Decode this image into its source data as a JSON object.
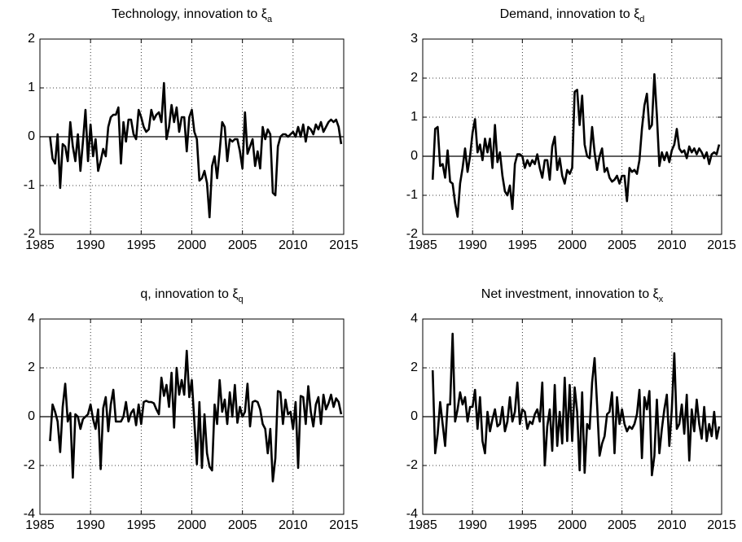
{
  "chart_data": [
    {
      "type": "line",
      "title": "Technology, innovation to ξ",
      "title_subscript": "a",
      "xlim": [
        1985,
        2015
      ],
      "xticks": [
        1985,
        1990,
        1995,
        2000,
        2005,
        2010,
        2015
      ],
      "ylim": [
        -2,
        2
      ],
      "yticks": [
        -2,
        -1,
        0,
        1,
        2
      ],
      "grid": true,
      "hline": 0,
      "x": [
        1986,
        1986.25,
        1986.5,
        1986.75,
        1987,
        1987.25,
        1987.5,
        1987.75,
        1988,
        1988.25,
        1988.5,
        1988.75,
        1989,
        1989.25,
        1989.5,
        1989.75,
        1990,
        1990.25,
        1990.5,
        1990.75,
        1991,
        1991.25,
        1991.5,
        1991.75,
        1992,
        1992.25,
        1992.5,
        1992.75,
        1993,
        1993.25,
        1993.5,
        1993.75,
        1994,
        1994.25,
        1994.5,
        1994.75,
        1995,
        1995.25,
        1995.5,
        1995.75,
        1996,
        1996.25,
        1996.5,
        1996.75,
        1997,
        1997.25,
        1997.5,
        1997.75,
        1998,
        1998.25,
        1998.5,
        1998.75,
        1999,
        1999.25,
        1999.5,
        1999.75,
        2000,
        2000.25,
        2000.5,
        2000.75,
        2001,
        2001.25,
        2001.5,
        2001.75,
        2002,
        2002.25,
        2002.5,
        2002.75,
        2003,
        2003.25,
        2003.5,
        2003.75,
        2004,
        2004.25,
        2004.5,
        2004.75,
        2005,
        2005.25,
        2005.5,
        2005.75,
        2006,
        2006.25,
        2006.5,
        2006.75,
        2007,
        2007.25,
        2007.5,
        2007.75,
        2008,
        2008.25,
        2008.5,
        2008.75,
        2009,
        2009.25,
        2009.5,
        2009.75,
        2010,
        2010.25,
        2010.5,
        2010.75,
        2011,
        2011.25,
        2011.5,
        2011.75,
        2012,
        2012.25,
        2012.5,
        2012.75,
        2013,
        2013.25,
        2013.5,
        2013.75,
        2014,
        2014.25,
        2014.5,
        2014.75
      ],
      "series": [
        {
          "color": "#000000",
          "values": [
            0,
            -0.45,
            -0.55,
            0.05,
            -1.05,
            -0.15,
            -0.2,
            -0.5,
            0.3,
            -0.2,
            -0.5,
            0.05,
            -0.7,
            -0.1,
            0.55,
            -0.5,
            0.25,
            -0.4,
            -0.05,
            -0.7,
            -0.5,
            -0.25,
            -0.4,
            0.2,
            0.4,
            0.45,
            0.45,
            0.6,
            -0.55,
            0.3,
            -0.1,
            0.35,
            0.35,
            0.05,
            -0.05,
            0.55,
            0.4,
            0.2,
            0.1,
            0.15,
            0.55,
            0.35,
            0.45,
            0.5,
            0.3,
            1.1,
            -0.05,
            0.2,
            0.65,
            0.3,
            0.6,
            0.1,
            0.4,
            0.4,
            -0.3,
            0.4,
            0.55,
            0.1,
            -0.05,
            -0.9,
            -0.85,
            -0.7,
            -0.95,
            -1.65,
            -0.6,
            -0.4,
            -0.85,
            -0.3,
            0.3,
            0.2,
            -0.5,
            -0.05,
            -0.1,
            -0.05,
            -0.05,
            -0.3,
            -0.65,
            0.5,
            -0.35,
            -0.2,
            -0.05,
            -0.6,
            -0.3,
            -0.65,
            0.2,
            -0.05,
            0.15,
            0.05,
            -1.15,
            -1.2,
            -0.2,
            0,
            0.05,
            0.05,
            0,
            0.05,
            0.1,
            0,
            0.2,
            0,
            0.25,
            -0.1,
            0.2,
            0.15,
            0.05,
            0.25,
            0.15,
            0.3,
            0.1,
            0.2,
            0.3,
            0.35,
            0.3,
            0.35,
            0.2,
            -0.15
          ]
        }
      ]
    },
    {
      "type": "line",
      "title": "Demand, innovation to ξ",
      "title_subscript": "d",
      "xlim": [
        1985,
        2015
      ],
      "xticks": [
        1985,
        1990,
        1995,
        2000,
        2005,
        2010,
        2015
      ],
      "ylim": [
        -2,
        3
      ],
      "yticks": [
        -2,
        -1,
        0,
        1,
        2,
        3
      ],
      "grid": true,
      "hline": 0,
      "x": [
        1986,
        1986.25,
        1986.5,
        1986.75,
        1987,
        1987.25,
        1987.5,
        1987.75,
        1988,
        1988.25,
        1988.5,
        1988.75,
        1989,
        1989.25,
        1989.5,
        1989.75,
        1990,
        1990.25,
        1990.5,
        1990.75,
        1991,
        1991.25,
        1991.5,
        1991.75,
        1992,
        1992.25,
        1992.5,
        1992.75,
        1993,
        1993.25,
        1993.5,
        1993.75,
        1994,
        1994.25,
        1994.5,
        1994.75,
        1995,
        1995.25,
        1995.5,
        1995.75,
        1996,
        1996.25,
        1996.5,
        1996.75,
        1997,
        1997.25,
        1997.5,
        1997.75,
        1998,
        1998.25,
        1998.5,
        1998.75,
        1999,
        1999.25,
        1999.5,
        1999.75,
        2000,
        2000.25,
        2000.5,
        2000.75,
        2001,
        2001.25,
        2001.5,
        2001.75,
        2002,
        2002.25,
        2002.5,
        2002.75,
        2003,
        2003.25,
        2003.5,
        2003.75,
        2004,
        2004.25,
        2004.5,
        2004.75,
        2005,
        2005.25,
        2005.5,
        2005.75,
        2006,
        2006.25,
        2006.5,
        2006.75,
        2007,
        2007.25,
        2007.5,
        2007.75,
        2008,
        2008.25,
        2008.5,
        2008.75,
        2009,
        2009.25,
        2009.5,
        2009.75,
        2010,
        2010.25,
        2010.5,
        2010.75,
        2011,
        2011.25,
        2011.5,
        2011.75,
        2012,
        2012.25,
        2012.5,
        2012.75,
        2013,
        2013.25,
        2013.5,
        2013.75,
        2014,
        2014.25,
        2014.5,
        2014.75
      ],
      "series": [
        {
          "color": "#000000",
          "values": [
            -0.6,
            0.7,
            0.75,
            -0.25,
            -0.2,
            -0.55,
            0.15,
            -0.65,
            -0.7,
            -1.2,
            -1.55,
            -0.7,
            -0.3,
            0.2,
            -0.4,
            0,
            0.6,
            0.95,
            0.1,
            0.3,
            -0.1,
            0.45,
            0.1,
            0.45,
            -0.3,
            0.8,
            -0.15,
            0.1,
            -0.5,
            -0.9,
            -1,
            -0.75,
            -1.35,
            -0.2,
            0.05,
            0.05,
            0,
            -0.3,
            -0.1,
            -0.25,
            -0.1,
            -0.2,
            0.05,
            -0.3,
            -0.55,
            -0.1,
            -0.1,
            -0.6,
            0.25,
            0.5,
            -0.35,
            -0.05,
            -0.5,
            -0.7,
            -0.35,
            -0.45,
            -0.3,
            1.65,
            1.7,
            0.8,
            1.55,
            0.3,
            0,
            -0.05,
            0.75,
            0.1,
            -0.35,
            0,
            0.2,
            -0.4,
            -0.3,
            -0.55,
            -0.65,
            -0.6,
            -0.5,
            -0.7,
            -0.5,
            -0.5,
            -1.15,
            -0.3,
            -0.4,
            -0.35,
            -0.45,
            -0.1,
            0.7,
            1.3,
            1.6,
            0.7,
            0.8,
            2.1,
            1.05,
            -0.25,
            0.1,
            -0.1,
            0.1,
            -0.15,
            0.15,
            0.3,
            0.7,
            0.2,
            0.1,
            0.15,
            -0.05,
            0.25,
            0.1,
            0.2,
            0.05,
            0.2,
            0.1,
            -0.05,
            0.1,
            -0.2,
            0.05,
            0.1,
            0.05,
            0.3
          ]
        }
      ]
    },
    {
      "type": "line",
      "title": "q, innovation to ξ",
      "title_subscript": "q",
      "xlim": [
        1985,
        2015
      ],
      "xticks": [
        1985,
        1990,
        1995,
        2000,
        2005,
        2010,
        2015
      ],
      "ylim": [
        -4,
        4
      ],
      "yticks": [
        -4,
        -2,
        0,
        2,
        4
      ],
      "grid": true,
      "hline": 0,
      "x": [
        1986,
        1986.25,
        1986.5,
        1986.75,
        1987,
        1987.25,
        1987.5,
        1987.75,
        1988,
        1988.25,
        1988.5,
        1988.75,
        1989,
        1989.25,
        1989.5,
        1989.75,
        1990,
        1990.25,
        1990.5,
        1990.75,
        1991,
        1991.25,
        1991.5,
        1991.75,
        1992,
        1992.25,
        1992.5,
        1992.75,
        1993,
        1993.25,
        1993.5,
        1993.75,
        1994,
        1994.25,
        1994.5,
        1994.75,
        1995,
        1995.25,
        1995.5,
        1995.75,
        1996,
        1996.25,
        1996.5,
        1996.75,
        1997,
        1997.25,
        1997.5,
        1997.75,
        1998,
        1998.25,
        1998.5,
        1998.75,
        1999,
        1999.25,
        1999.5,
        1999.75,
        2000,
        2000.25,
        2000.5,
        2000.75,
        2001,
        2001.25,
        2001.5,
        2001.75,
        2002,
        2002.25,
        2002.5,
        2002.75,
        2003,
        2003.25,
        2003.5,
        2003.75,
        2004,
        2004.25,
        2004.5,
        2004.75,
        2005,
        2005.25,
        2005.5,
        2005.75,
        2006,
        2006.25,
        2006.5,
        2006.75,
        2007,
        2007.25,
        2007.5,
        2007.75,
        2008,
        2008.25,
        2008.5,
        2008.75,
        2009,
        2009.25,
        2009.5,
        2009.75,
        2010,
        2010.25,
        2010.5,
        2010.75,
        2011,
        2011.25,
        2011.5,
        2011.75,
        2012,
        2012.25,
        2012.5,
        2012.75,
        2013,
        2013.25,
        2013.5,
        2013.75,
        2014,
        2014.25,
        2014.5,
        2014.75
      ],
      "series": [
        {
          "color": "#000000",
          "values": [
            -1,
            0.5,
            0.2,
            -0.2,
            -1.45,
            0.4,
            1.35,
            -0.2,
            0.15,
            -2.5,
            0.1,
            0,
            -0.5,
            -0.1,
            0,
            0.1,
            0.5,
            -0.1,
            -0.5,
            0.3,
            -2.15,
            0.35,
            0.8,
            -0.6,
            0.5,
            1.1,
            -0.2,
            -0.2,
            -0.2,
            0,
            0.6,
            -0.2,
            0.15,
            0.3,
            -0.35,
            0.5,
            -0.3,
            0.6,
            0.65,
            0.6,
            0.6,
            0.55,
            0.3,
            0.1,
            1.6,
            0.85,
            1.3,
            0.4,
            1.8,
            -0.45,
            2,
            0.9,
            1.5,
            0.9,
            2.7,
            0.8,
            1.5,
            -0.2,
            -1.95,
            0.6,
            -2.1,
            0.1,
            -1.5,
            -2.05,
            -2.2,
            0.5,
            -0.3,
            1.5,
            0.2,
            0.7,
            -0.3,
            1,
            0,
            1.3,
            -0.25,
            0.4,
            0,
            0.2,
            1.35,
            -0.4,
            0.6,
            0.65,
            0.6,
            0.3,
            -0.3,
            -0.5,
            -1.5,
            -0.5,
            -2.65,
            -1.7,
            1.05,
            1,
            -0.3,
            0.7,
            0.1,
            0.2,
            -0.5,
            0.6,
            -2.1,
            0.85,
            0.8,
            -0.3,
            1.25,
            0.2,
            -0.4,
            0.5,
            0.8,
            -0.3,
            0.9,
            0.3,
            0.55,
            0.9,
            0.4,
            0.75,
            0.6,
            0.1
          ]
        }
      ]
    },
    {
      "type": "line",
      "title": "Net investment, innovation to ξ",
      "title_subscript": "x",
      "xlim": [
        1985,
        2015
      ],
      "xticks": [
        1985,
        1990,
        1995,
        2000,
        2005,
        2010,
        2015
      ],
      "ylim": [
        -4,
        4
      ],
      "yticks": [
        -4,
        -2,
        0,
        2,
        4
      ],
      "grid": true,
      "hline": 0,
      "x": [
        1986,
        1986.25,
        1986.5,
        1986.75,
        1987,
        1987.25,
        1987.5,
        1987.75,
        1988,
        1988.25,
        1988.5,
        1988.75,
        1989,
        1989.25,
        1989.5,
        1989.75,
        1990,
        1990.25,
        1990.5,
        1990.75,
        1991,
        1991.25,
        1991.5,
        1991.75,
        1992,
        1992.25,
        1992.5,
        1992.75,
        1993,
        1993.25,
        1993.5,
        1993.75,
        1994,
        1994.25,
        1994.5,
        1994.75,
        1995,
        1995.25,
        1995.5,
        1995.75,
        1996,
        1996.25,
        1996.5,
        1996.75,
        1997,
        1997.25,
        1997.5,
        1997.75,
        1998,
        1998.25,
        1998.5,
        1998.75,
        1999,
        1999.25,
        1999.5,
        1999.75,
        2000,
        2000.25,
        2000.5,
        2000.75,
        2001,
        2001.25,
        2001.5,
        2001.75,
        2002,
        2002.25,
        2002.5,
        2002.75,
        2003,
        2003.25,
        2003.5,
        2003.75,
        2004,
        2004.25,
        2004.5,
        2004.75,
        2005,
        2005.25,
        2005.5,
        2005.75,
        2006,
        2006.25,
        2006.5,
        2006.75,
        2007,
        2007.25,
        2007.5,
        2007.75,
        2008,
        2008.25,
        2008.5,
        2008.75,
        2009,
        2009.25,
        2009.5,
        2009.75,
        2010,
        2010.25,
        2010.5,
        2010.75,
        2011,
        2011.25,
        2011.5,
        2011.75,
        2012,
        2012.25,
        2012.5,
        2012.75,
        2013,
        2013.25,
        2013.5,
        2013.75,
        2014,
        2014.25,
        2014.5,
        2014.75
      ],
      "series": [
        {
          "color": "#000000",
          "values": [
            1.9,
            -1.5,
            -0.7,
            0.6,
            -0.3,
            -1.2,
            0.5,
            0.5,
            3.4,
            -0.2,
            0.3,
            1,
            0.5,
            0.8,
            -0.2,
            0.4,
            0.4,
            1.1,
            -0.5,
            0.8,
            -1,
            -1.5,
            0.2,
            -0.6,
            -0.1,
            0.3,
            -0.4,
            -0.3,
            0.4,
            -0.6,
            -0.2,
            0.8,
            -0.2,
            0.2,
            1.4,
            -0.3,
            0.3,
            0.2,
            -0.5,
            -0.2,
            -0.3,
            0.1,
            0.3,
            -0.2,
            1.4,
            -2,
            -0.4,
            0.3,
            -1.4,
            1.3,
            -1.2,
            0.2,
            -1.1,
            1.6,
            -1,
            1.3,
            -1,
            1.2,
            0.2,
            -2.2,
            1,
            -2.3,
            -0.3,
            -0.5,
            1.4,
            2.4,
            0.5,
            -1.6,
            -1.1,
            -0.8,
            0.1,
            0.2,
            1,
            -1.5,
            0.8,
            -0.3,
            0.3,
            -0.3,
            -0.6,
            -0.4,
            -0.5,
            -0.3,
            0.1,
            1.1,
            -1.7,
            0.8,
            0.3,
            1.05,
            -2.4,
            -1.6,
            0.7,
            -1.5,
            -0.5,
            0.3,
            0.9,
            -1.2,
            0.3,
            2.6,
            -0.5,
            -0.3,
            0.5,
            -0.7,
            0.9,
            -1.8,
            0.3,
            -0.6,
            0.7,
            -0.3,
            -0.9,
            0.4,
            -1,
            -0.3,
            -0.8,
            0.2,
            -0.9,
            -0.4
          ]
        }
      ]
    }
  ]
}
